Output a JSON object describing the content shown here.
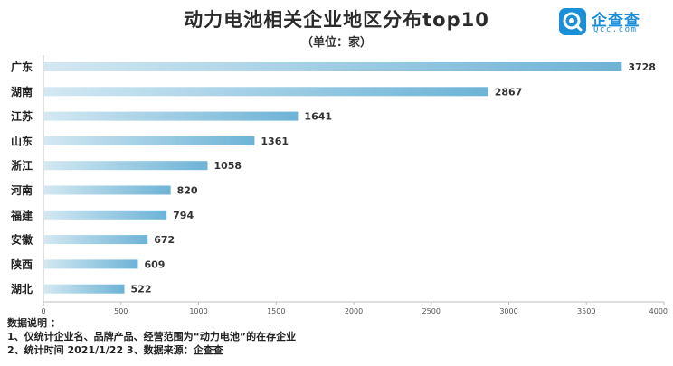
{
  "header": {
    "title": "动力电池相关企业地区分布top10",
    "subtitle": "（单位：家）"
  },
  "logo": {
    "name": "企查查",
    "domain": "Qcc.com",
    "color": "#1a8fd8"
  },
  "chart_data": {
    "type": "bar",
    "orientation": "horizontal",
    "title": "动力电池相关企业地区分布top10",
    "subtitle": "（单位：家）",
    "categories": [
      "广东",
      "湖南",
      "江苏",
      "山东",
      "浙江",
      "河南",
      "福建",
      "安徽",
      "陕西",
      "湖北"
    ],
    "values": [
      3728,
      2867,
      1641,
      1361,
      1058,
      820,
      794,
      672,
      609,
      522
    ],
    "xlim": [
      0,
      4000
    ],
    "xticks": [
      0,
      500,
      1000,
      1500,
      2000,
      2500,
      3000,
      3500,
      4000
    ],
    "grid": false,
    "bar_gradient": [
      "#d3e8f2",
      "#6db3d6"
    ],
    "data_labels": true
  },
  "notes": {
    "heading": "数据说明 ：",
    "line1": "1、仅统计企业名、品牌产品、经营范围为“动力电池”的在存企业",
    "line2": "2、统计时间  2021/1/22        3、数据来源：企查查"
  }
}
